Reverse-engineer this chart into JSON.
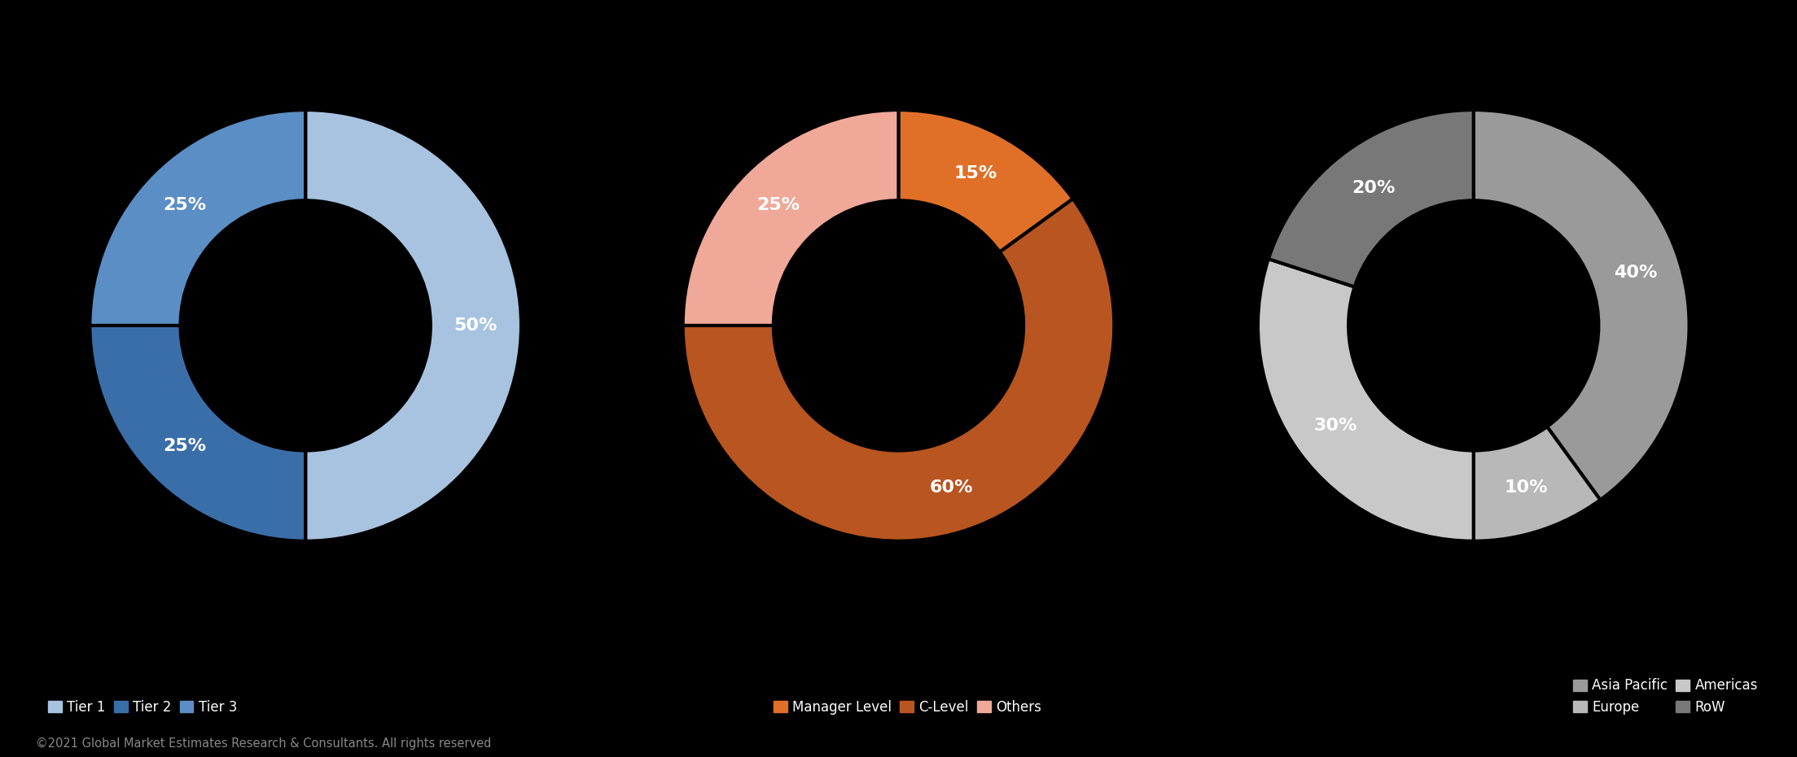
{
  "background_color": "#000000",
  "text_color": "#ffffff",
  "chart1": {
    "labels": [
      "Tier 1",
      "Tier 2",
      "Tier 3"
    ],
    "values": [
      50,
      25,
      25
    ],
    "colors": [
      "#a8c3e0",
      "#3a6ea8",
      "#5b8ec4"
    ],
    "pct_labels": [
      "50%",
      "25%",
      "25%"
    ],
    "startangle": 90
  },
  "chart2": {
    "labels": [
      "Manager Level",
      "C-Level",
      "Others"
    ],
    "values": [
      15,
      60,
      25
    ],
    "colors": [
      "#e07028",
      "#b85520",
      "#f0a898"
    ],
    "pct_labels": [
      "15%",
      "60%",
      "25%"
    ],
    "startangle": 90
  },
  "chart3": {
    "labels": [
      "Asia Pacific",
      "Europe",
      "Americas",
      "RoW"
    ],
    "values": [
      40,
      10,
      30,
      20
    ],
    "colors": [
      "#9a9a9a",
      "#b8b8b8",
      "#c8c8c8",
      "#787878"
    ],
    "pct_labels": [
      "40%",
      "10%",
      "30%",
      "20%"
    ],
    "startangle": 90
  },
  "legend1": {
    "labels": [
      "Tier 1",
      "Tier 2",
      "Tier 3"
    ],
    "colors": [
      "#a8c3e0",
      "#3a6ea8",
      "#5b8ec4"
    ]
  },
  "legend2": {
    "labels": [
      "Manager Level",
      "C-Level",
      "Others"
    ],
    "colors": [
      "#e07028",
      "#b85520",
      "#f0a898"
    ]
  },
  "legend3": {
    "labels": [
      "Asia Pacific",
      "Europe",
      "Americas",
      "RoW"
    ],
    "colors": [
      "#9a9a9a",
      "#b8b8b8",
      "#c8c8c8",
      "#787878"
    ]
  },
  "footer": "©2021 Global Market Estimates Research & Consultants. All rights reserved",
  "footer_color": "#888888",
  "donut_width": 0.42
}
